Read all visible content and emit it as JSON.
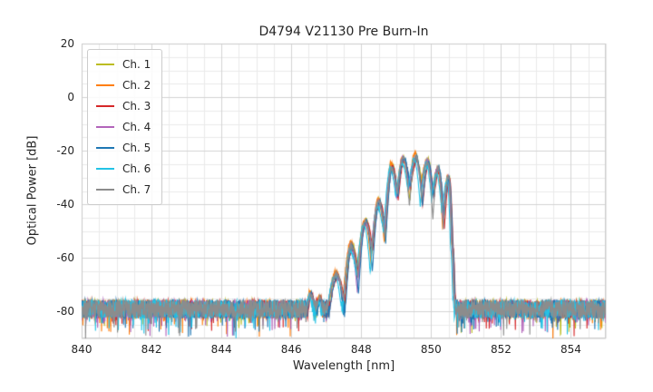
{
  "figure": {
    "background": "#ffffff"
  },
  "colors": {
    "grid_major": "#d3d3d3",
    "grid_minor": "#eaeaea",
    "spine": "#cccccc",
    "text": "#262626",
    "legend_border": "#cccccc"
  },
  "chart_data": {
    "type": "line",
    "title": "D4794 V21130 Pre Burn-In",
    "xlabel": "Wavelength [nm]",
    "ylabel": "Optical Power [dB]",
    "xlim": [
      840,
      855
    ],
    "ylim": [
      -90,
      20
    ],
    "x_ticks": [
      840,
      842,
      844,
      846,
      848,
      850,
      852,
      854
    ],
    "y_ticks": [
      20,
      0,
      -20,
      -40,
      -60,
      -80
    ],
    "x_minor_step": 0.5,
    "y_minor_step": 5,
    "grid": true,
    "legend_position": "upper left",
    "noise_floor_db": -80,
    "noise_spread_db": 7,
    "signal_envelope_nm_db": [
      [
        846.4,
        -87
      ],
      [
        846.55,
        -73
      ],
      [
        846.7,
        -80
      ],
      [
        846.82,
        -75
      ],
      [
        846.95,
        -88
      ],
      [
        847.3,
        -66
      ],
      [
        847.5,
        -76
      ],
      [
        847.72,
        -55.5
      ],
      [
        847.9,
        -65
      ],
      [
        848.12,
        -46.5
      ],
      [
        848.3,
        -56
      ],
      [
        848.5,
        -39
      ],
      [
        848.68,
        -49
      ],
      [
        848.87,
        -26
      ],
      [
        849.03,
        -37
      ],
      [
        849.2,
        -23
      ],
      [
        849.38,
        -33.5
      ],
      [
        849.56,
        -22.5
      ],
      [
        849.73,
        -33
      ],
      [
        849.9,
        -24
      ],
      [
        850.05,
        -37
      ],
      [
        850.2,
        -27
      ],
      [
        850.35,
        -43
      ],
      [
        850.5,
        -30
      ],
      [
        850.6,
        -55
      ],
      [
        850.66,
        -74
      ],
      [
        850.72,
        -88
      ]
    ],
    "series": [
      {
        "name": "Ch. 1",
        "color": "#bcbd22",
        "dx": 0.01,
        "dy": 0.4
      },
      {
        "name": "Ch. 2",
        "color": "#ff7f0e",
        "dx": -0.02,
        "dy": 0.9
      },
      {
        "name": "Ch. 3",
        "color": "#d62728",
        "dx": 0.03,
        "dy": -0.6
      },
      {
        "name": "Ch. 4",
        "color": "#b264ba",
        "dx": -0.01,
        "dy": 0.1
      },
      {
        "name": "Ch. 5",
        "color": "#1f77b4",
        "dx": 0.02,
        "dy": -0.2
      },
      {
        "name": "Ch. 6",
        "color": "#22c3e6",
        "dx": -0.04,
        "dy": -1.0
      },
      {
        "name": "Ch. 7",
        "color": "#8c8c8c",
        "dx": 0.0,
        "dy": 0.0
      }
    ]
  }
}
